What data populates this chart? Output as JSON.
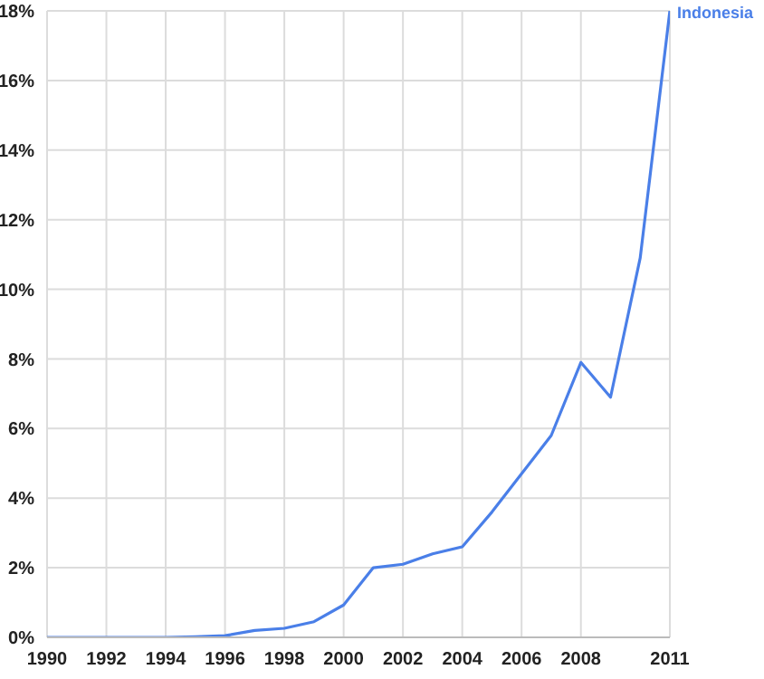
{
  "chart_data": {
    "type": "line",
    "x": [
      1990,
      1991,
      1992,
      1993,
      1994,
      1995,
      1996,
      1997,
      1998,
      1999,
      2000,
      2001,
      2002,
      2003,
      2004,
      2005,
      2006,
      2007,
      2008,
      2009,
      2010,
      2011
    ],
    "series": [
      {
        "name": "Indonesia",
        "color": "#4a7fe8",
        "values": [
          0,
          0,
          0,
          0,
          0,
          0.02,
          0.05,
          0.2,
          0.26,
          0.45,
          0.93,
          2.0,
          2.1,
          2.4,
          2.6,
          3.6,
          4.7,
          5.8,
          7.9,
          6.9,
          10.9,
          18.0
        ]
      }
    ],
    "xlim": [
      1990,
      2011
    ],
    "xticks": [
      1990,
      1992,
      1994,
      1996,
      1998,
      2000,
      2002,
      2004,
      2006,
      2008,
      2011
    ],
    "ylim": [
      0,
      18
    ],
    "yticks": [
      {
        "value": 0,
        "label": "0%"
      },
      {
        "value": 2,
        "label": "2%"
      },
      {
        "value": 4,
        "label": "4%"
      },
      {
        "value": 6,
        "label": "6%"
      },
      {
        "value": 8,
        "label": "8%"
      },
      {
        "value": 10,
        "label": "10%"
      },
      {
        "value": 12,
        "label": "12%"
      },
      {
        "value": 14,
        "label": "14%"
      },
      {
        "value": 16,
        "label": "16%"
      },
      {
        "value": 18,
        "label": "18%"
      }
    ],
    "grid": true,
    "legend": false,
    "marker": "none",
    "line_style": "solid"
  }
}
